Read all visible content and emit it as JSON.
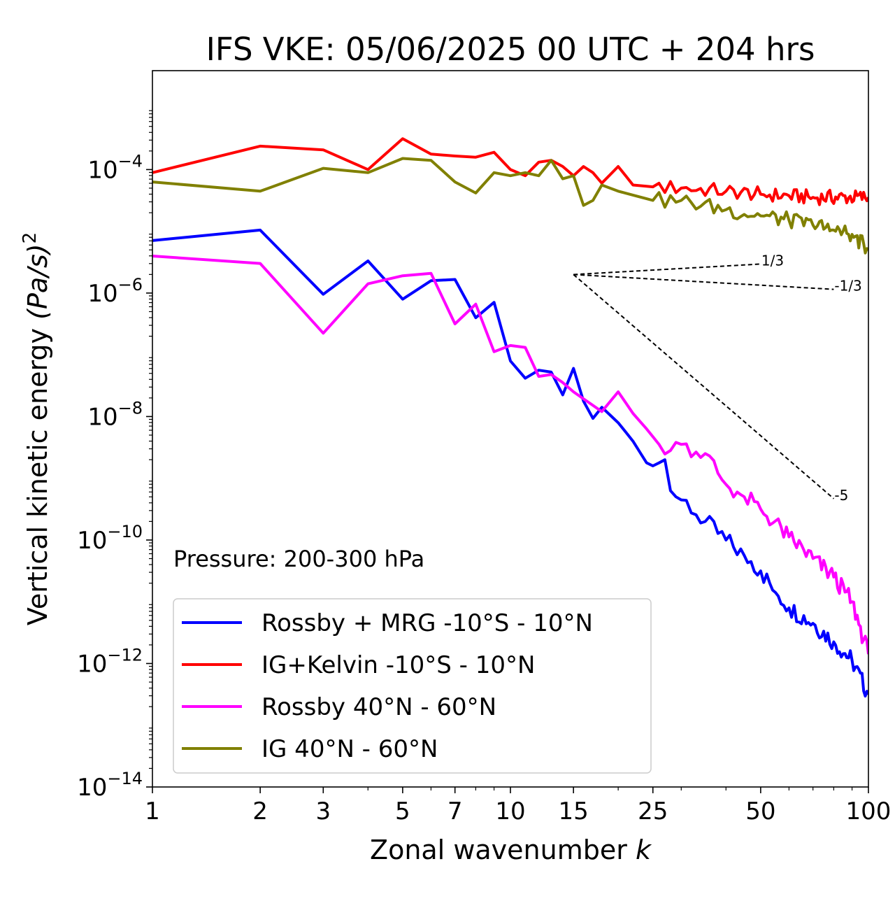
{
  "chart_data": {
    "type": "line",
    "title": "IFS VKE: 05/06/2025 00 UTC + 204 hrs",
    "xlabel": "Zonal wavenumber",
    "xlabel_var": "k",
    "ylabel": "Vertical kinetic energy",
    "ylabel_unit": "(Pa/s)",
    "ylabel_exp": "2",
    "xscale": "log",
    "yscale": "log",
    "xlim": [
      1,
      100
    ],
    "ylim": [
      1e-14,
      0.004
    ],
    "x_ticks": [
      1,
      2,
      3,
      5,
      7,
      10,
      15,
      25,
      50,
      100
    ],
    "x_tick_labels": [
      "1",
      "2",
      "3",
      "5",
      "7",
      "10",
      "15",
      "25",
      "50",
      "100"
    ],
    "y_ticks": [
      -14,
      -12,
      -10,
      -8,
      -6,
      -4
    ],
    "y_tick_labels": [
      {
        "base": "10",
        "exp": "−14"
      },
      {
        "base": "10",
        "exp": "−12"
      },
      {
        "base": "10",
        "exp": "−10"
      },
      {
        "base": "10",
        "exp": "−8"
      },
      {
        "base": "10",
        "exp": "−6"
      },
      {
        "base": "10",
        "exp": "−4"
      }
    ],
    "annotation": "Pressure: 200-300 hPa",
    "legend_placement": "lower-left",
    "grid": false,
    "series": [
      {
        "name": "Rossby + MRG -10°S - 10°N",
        "color": "#0000ff",
        "anchors": [
          [
            1,
            -5.15
          ],
          [
            2,
            -4.98
          ],
          [
            3,
            -6.02
          ],
          [
            4,
            -5.48
          ],
          [
            5,
            -6.1
          ],
          [
            6,
            -5.8
          ],
          [
            7,
            -5.78
          ],
          [
            8,
            -6.4
          ],
          [
            9,
            -6.15
          ],
          [
            10,
            -7.1
          ],
          [
            11,
            -7.38
          ],
          [
            12,
            -7.25
          ],
          [
            13,
            -7.28
          ],
          [
            14,
            -7.65
          ],
          [
            15,
            -7.22
          ],
          [
            16,
            -7.75
          ],
          [
            17,
            -8.03
          ],
          [
            18,
            -7.85
          ],
          [
            20,
            -8.1
          ],
          [
            22,
            -8.4
          ],
          [
            24,
            -8.75
          ],
          [
            25,
            -8.8
          ],
          [
            27,
            -8.7
          ],
          [
            28,
            -9.2
          ],
          [
            30,
            -9.35
          ],
          [
            35,
            -9.7
          ],
          [
            40,
            -10.0
          ],
          [
            45,
            -10.25
          ],
          [
            50,
            -10.5
          ],
          [
            55,
            -10.85
          ],
          [
            60,
            -11.1
          ],
          [
            70,
            -11.35
          ],
          [
            80,
            -11.65
          ],
          [
            90,
            -11.95
          ],
          [
            100,
            -12.5
          ]
        ],
        "noise": 0.15
      },
      {
        "name": "IG+Kelvin -10°S - 10°N",
        "color": "#ff0000",
        "anchors": [
          [
            1,
            -4.05
          ],
          [
            2,
            -3.62
          ],
          [
            3,
            -3.68
          ],
          [
            4,
            -4.0
          ],
          [
            5,
            -3.5
          ],
          [
            6,
            -3.75
          ],
          [
            7,
            -3.78
          ],
          [
            8,
            -3.8
          ],
          [
            9,
            -3.72
          ],
          [
            10,
            -4.0
          ],
          [
            11,
            -4.1
          ],
          [
            12,
            -3.88
          ],
          [
            13,
            -3.85
          ],
          [
            14,
            -3.95
          ],
          [
            15,
            -4.1
          ],
          [
            16,
            -3.95
          ],
          [
            17,
            -4.05
          ],
          [
            18,
            -4.22
          ],
          [
            20,
            -3.95
          ],
          [
            22,
            -4.25
          ],
          [
            25,
            -4.28
          ],
          [
            30,
            -4.3
          ],
          [
            40,
            -4.35
          ],
          [
            50,
            -4.4
          ],
          [
            70,
            -4.45
          ],
          [
            100,
            -4.45
          ]
        ],
        "noise": 0.12
      },
      {
        "name": "Rossby 40°N - 60°N",
        "color": "#ff00ff",
        "anchors": [
          [
            1,
            -5.4
          ],
          [
            2,
            -5.52
          ],
          [
            3,
            -6.65
          ],
          [
            4,
            -5.85
          ],
          [
            5,
            -5.72
          ],
          [
            6,
            -5.68
          ],
          [
            7,
            -6.5
          ],
          [
            8,
            -6.18
          ],
          [
            9,
            -6.95
          ],
          [
            10,
            -6.85
          ],
          [
            11,
            -6.88
          ],
          [
            12,
            -7.35
          ],
          [
            13,
            -7.32
          ],
          [
            14,
            -7.45
          ],
          [
            15,
            -7.6
          ],
          [
            18,
            -7.92
          ],
          [
            20,
            -7.6
          ],
          [
            22,
            -7.95
          ],
          [
            24,
            -8.2
          ],
          [
            26,
            -8.45
          ],
          [
            28,
            -8.55
          ],
          [
            30,
            -8.45
          ],
          [
            35,
            -8.6
          ],
          [
            40,
            -9.1
          ],
          [
            45,
            -9.3
          ],
          [
            50,
            -9.5
          ],
          [
            60,
            -9.95
          ],
          [
            70,
            -10.3
          ],
          [
            80,
            -10.6
          ],
          [
            90,
            -11.0
          ],
          [
            100,
            -11.85
          ]
        ],
        "noise": 0.15
      },
      {
        "name": "IG 40°N - 60°N",
        "color": "#808000",
        "anchors": [
          [
            1,
            -4.2
          ],
          [
            2,
            -4.35
          ],
          [
            3,
            -3.98
          ],
          [
            4,
            -4.05
          ],
          [
            5,
            -3.82
          ],
          [
            6,
            -3.85
          ],
          [
            7,
            -4.2
          ],
          [
            8,
            -4.38
          ],
          [
            9,
            -4.05
          ],
          [
            10,
            -4.1
          ],
          [
            11,
            -4.05
          ],
          [
            12,
            -4.1
          ],
          [
            13,
            -3.85
          ],
          [
            14,
            -4.15
          ],
          [
            15,
            -4.1
          ],
          [
            16,
            -4.58
          ],
          [
            17,
            -4.5
          ],
          [
            18,
            -4.25
          ],
          [
            20,
            -4.35
          ],
          [
            25,
            -4.5
          ],
          [
            30,
            -4.5
          ],
          [
            40,
            -4.65
          ],
          [
            50,
            -4.75
          ],
          [
            60,
            -4.82
          ],
          [
            70,
            -4.9
          ],
          [
            80,
            -4.98
          ],
          [
            90,
            -5.05
          ],
          [
            100,
            -5.3
          ]
        ],
        "noise": 0.13
      }
    ],
    "reference_lines": [
      {
        "label": "1/3",
        "from": [
          15,
          -5.7
        ],
        "to": [
          50,
          -5.53
        ]
      },
      {
        "label": "-1/3",
        "from": [
          15,
          -5.7
        ],
        "to": [
          80,
          -5.94
        ]
      },
      {
        "label": "-5",
        "from": [
          15,
          -5.7
        ],
        "to": [
          80,
          -9.33
        ]
      }
    ]
  }
}
